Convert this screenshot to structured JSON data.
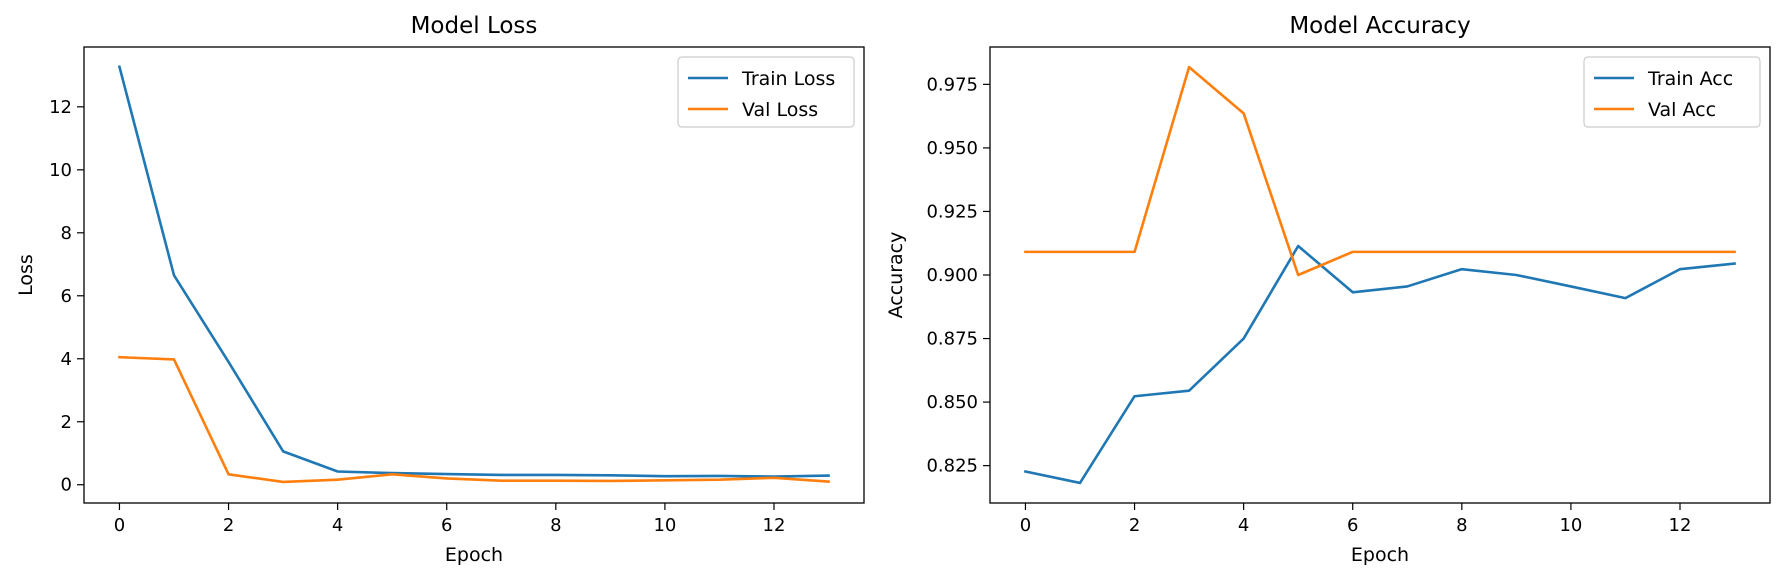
{
  "chart_data": [
    {
      "type": "line",
      "title": "Model Loss",
      "xlabel": "Epoch",
      "ylabel": "Loss",
      "x": [
        0,
        1,
        2,
        3,
        4,
        5,
        6,
        7,
        8,
        9,
        10,
        11,
        12,
        13
      ],
      "xlim": [
        -0.65,
        13.65
      ],
      "ylim": [
        -0.58,
        13.9
      ],
      "xticks": [
        0,
        2,
        4,
        6,
        8,
        10,
        12
      ],
      "yticks": [
        0,
        2,
        4,
        6,
        8,
        10,
        12
      ],
      "grid": false,
      "legend_position": "top-right",
      "series": [
        {
          "name": "Train Loss",
          "color": "#1f77b4",
          "values": [
            13.27,
            6.65,
            3.9,
            1.06,
            0.42,
            0.37,
            0.34,
            0.31,
            0.31,
            0.3,
            0.27,
            0.28,
            0.26,
            0.29
          ]
        },
        {
          "name": "Val Loss",
          "color": "#ff7f0e",
          "values": [
            4.05,
            3.98,
            0.33,
            0.09,
            0.16,
            0.33,
            0.2,
            0.13,
            0.13,
            0.12,
            0.14,
            0.16,
            0.22,
            0.1
          ]
        }
      ]
    },
    {
      "type": "line",
      "title": "Model Accuracy",
      "xlabel": "Epoch",
      "ylabel": "Accuracy",
      "x": [
        0,
        1,
        2,
        3,
        4,
        5,
        6,
        7,
        8,
        9,
        10,
        11,
        12,
        13
      ],
      "xlim": [
        -0.65,
        13.65
      ],
      "ylim": [
        0.8103,
        0.9897
      ],
      "xticks": [
        0,
        2,
        4,
        6,
        8,
        10,
        12
      ],
      "yticks": [
        0.825,
        0.85,
        0.875,
        0.9,
        0.925,
        0.95,
        0.975
      ],
      "ytick_labels": [
        "0.825",
        "0.850",
        "0.875",
        "0.900",
        "0.925",
        "0.950",
        "0.975"
      ],
      "grid": false,
      "legend_position": "top-right",
      "series": [
        {
          "name": "Train Acc",
          "color": "#1f77b4",
          "values": [
            0.8227,
            0.8182,
            0.8523,
            0.8545,
            0.875,
            0.9114,
            0.8932,
            0.8955,
            0.9023,
            0.9,
            0.8955,
            0.8909,
            0.9023,
            0.9045
          ]
        },
        {
          "name": "Val Acc",
          "color": "#ff7f0e",
          "values": [
            0.9091,
            0.9091,
            0.9091,
            0.9818,
            0.9636,
            0.9,
            0.9091,
            0.9091,
            0.9091,
            0.9091,
            0.9091,
            0.9091,
            0.9091,
            0.9091
          ]
        }
      ]
    }
  ]
}
